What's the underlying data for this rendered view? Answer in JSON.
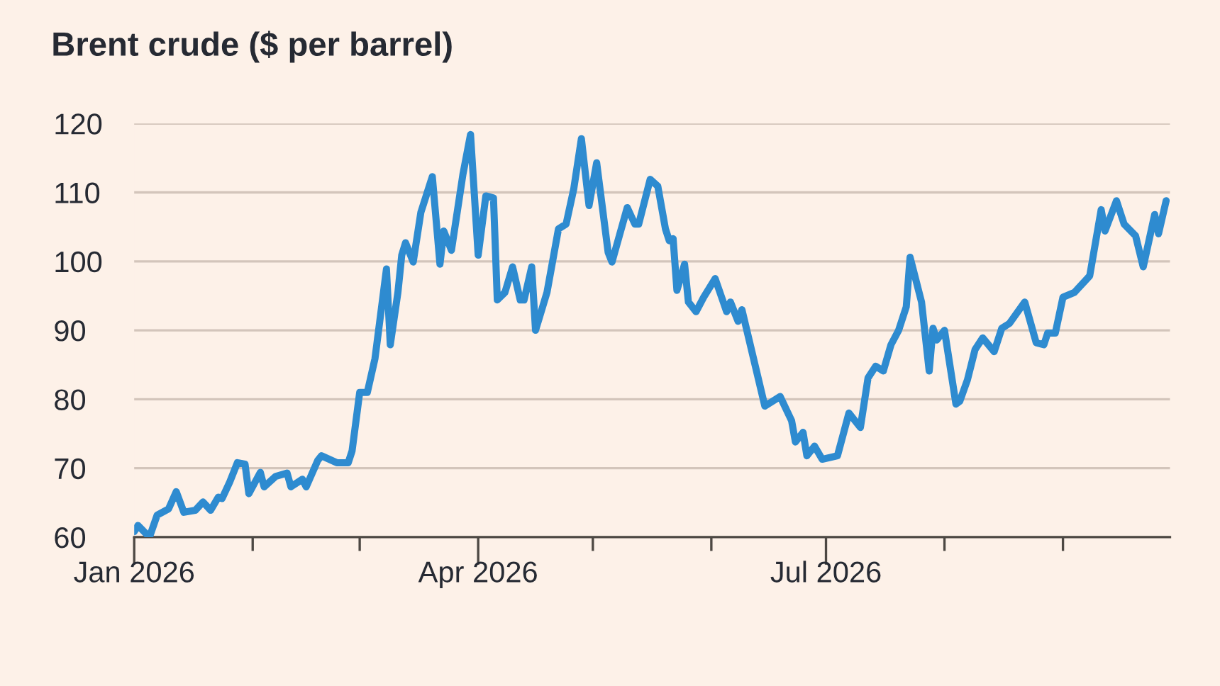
{
  "chart_data": {
    "type": "line",
    "title": "Brent crude ($ per barrel)",
    "x": [
      "2026-01-01",
      "2026-01-02",
      "2026-01-05",
      "2026-01-07",
      "2026-01-10",
      "2026-01-12",
      "2026-01-14",
      "2026-01-17",
      "2026-01-19",
      "2026-01-21",
      "2026-01-23",
      "2026-01-24",
      "2026-01-26",
      "2026-01-28",
      "2026-01-30",
      "2026-01-31",
      "2026-02-03",
      "2026-02-04",
      "2026-02-07",
      "2026-02-10",
      "2026-02-11",
      "2026-02-14",
      "2026-02-15",
      "2026-02-18",
      "2026-02-19",
      "2026-02-23",
      "2026-02-26",
      "2026-02-27",
      "2026-03-01",
      "2026-03-03",
      "2026-03-05",
      "2026-03-08",
      "2026-03-09",
      "2026-03-11",
      "2026-03-12",
      "2026-03-13",
      "2026-03-15",
      "2026-03-17",
      "2026-03-20",
      "2026-03-22",
      "2026-03-23",
      "2026-03-25",
      "2026-03-28",
      "2026-03-30",
      "2026-04-01",
      "2026-04-03",
      "2026-04-05",
      "2026-04-06",
      "2026-04-08",
      "2026-04-10",
      "2026-04-12",
      "2026-04-13",
      "2026-04-15",
      "2026-04-16",
      "2026-04-19",
      "2026-04-22",
      "2026-04-24",
      "2026-04-26",
      "2026-04-28",
      "2026-04-30",
      "2026-05-02",
      "2026-05-05",
      "2026-05-06",
      "2026-05-10",
      "2026-05-12",
      "2026-05-13",
      "2026-05-16",
      "2026-05-18",
      "2026-05-20",
      "2026-05-21",
      "2026-05-22",
      "2026-05-23",
      "2026-05-25",
      "2026-05-26",
      "2026-05-28",
      "2026-05-30",
      "2026-06-02",
      "2026-06-05",
      "2026-06-06",
      "2026-06-08",
      "2026-06-09",
      "2026-06-15",
      "2026-06-19",
      "2026-06-22",
      "2026-06-23",
      "2026-06-25",
      "2026-06-26",
      "2026-06-28",
      "2026-06-30",
      "2026-07-04",
      "2026-07-07",
      "2026-07-10",
      "2026-07-12",
      "2026-07-14",
      "2026-07-16",
      "2026-07-18",
      "2026-07-20",
      "2026-07-22",
      "2026-07-23",
      "2026-07-26",
      "2026-07-28",
      "2026-07-29",
      "2026-07-30",
      "2026-08-01",
      "2026-08-04",
      "2026-08-05",
      "2026-08-07",
      "2026-08-09",
      "2026-08-11",
      "2026-08-14",
      "2026-08-16",
      "2026-08-18",
      "2026-08-22",
      "2026-08-25",
      "2026-08-27",
      "2026-08-28",
      "2026-08-30",
      "2026-09-01",
      "2026-09-04",
      "2026-09-08",
      "2026-09-11",
      "2026-09-12",
      "2026-09-15",
      "2026-09-17",
      "2026-09-20",
      "2026-09-22",
      "2026-09-25",
      "2026-09-26",
      "2026-09-28"
    ],
    "series": [
      {
        "color": "#2e8bd0",
        "values": [
          60.8,
          61.7,
          60.0,
          63.2,
          64.1,
          66.6,
          63.6,
          63.9,
          65.1,
          63.9,
          65.8,
          65.6,
          68.0,
          70.8,
          70.6,
          66.3,
          69.4,
          67.3,
          68.8,
          69.3,
          67.3,
          68.4,
          67.3,
          71.1,
          71.8,
          70.8,
          70.8,
          72.5,
          81.0,
          81.0,
          85.9,
          98.9,
          87.9,
          95.5,
          100.9,
          102.7,
          99.9,
          107.1,
          112.3,
          99.6,
          104.4,
          101.6,
          112.6,
          118.4,
          100.9,
          109.5,
          109.2,
          94.4,
          95.5,
          99.2,
          94.4,
          94.4,
          99.2,
          90.0,
          95.5,
          104.7,
          105.4,
          110.5,
          117.8,
          108.1,
          114.3,
          101.3,
          99.9,
          107.8,
          105.4,
          105.4,
          111.9,
          110.9,
          104.7,
          103.0,
          103.3,
          95.8,
          99.6,
          94.1,
          92.7,
          94.8,
          97.5,
          92.7,
          94.1,
          91.3,
          93.0,
          79.0,
          80.4,
          76.9,
          73.8,
          75.2,
          71.8,
          73.2,
          71.3,
          71.8,
          78.0,
          75.9,
          83.1,
          84.8,
          84.1,
          87.9,
          90.0,
          93.4,
          100.6,
          94.1,
          84.1,
          90.3,
          88.6,
          90.0,
          79.3,
          79.7,
          82.8,
          87.2,
          88.9,
          86.9,
          90.3,
          91.0,
          94.1,
          88.2,
          87.9,
          89.6,
          89.6,
          94.8,
          95.5,
          97.9,
          107.5,
          104.4,
          108.8,
          105.4,
          103.7,
          99.2,
          106.8,
          104.0,
          108.8
        ]
      }
    ],
    "xlim": [
      "2026-01-01",
      "2026-09-29"
    ],
    "xticks": [
      {
        "value": "2026-01-01",
        "label": "Jan 2026"
      },
      {
        "value": "2026-02-01",
        "label": null
      },
      {
        "value": "2026-03-01",
        "label": null
      },
      {
        "value": "2026-04-01",
        "label": "Apr 2026"
      },
      {
        "value": "2026-05-01",
        "label": null
      },
      {
        "value": "2026-06-01",
        "label": null
      },
      {
        "value": "2026-07-01",
        "label": "Jul 2026"
      },
      {
        "value": "2026-08-01",
        "label": null
      },
      {
        "value": "2026-09-01",
        "label": null
      }
    ],
    "ylim": [
      60,
      120
    ],
    "yticks": [
      60,
      70,
      80,
      90,
      100,
      110,
      120
    ],
    "grid": "y",
    "marker": "none",
    "line_style": "solid"
  }
}
